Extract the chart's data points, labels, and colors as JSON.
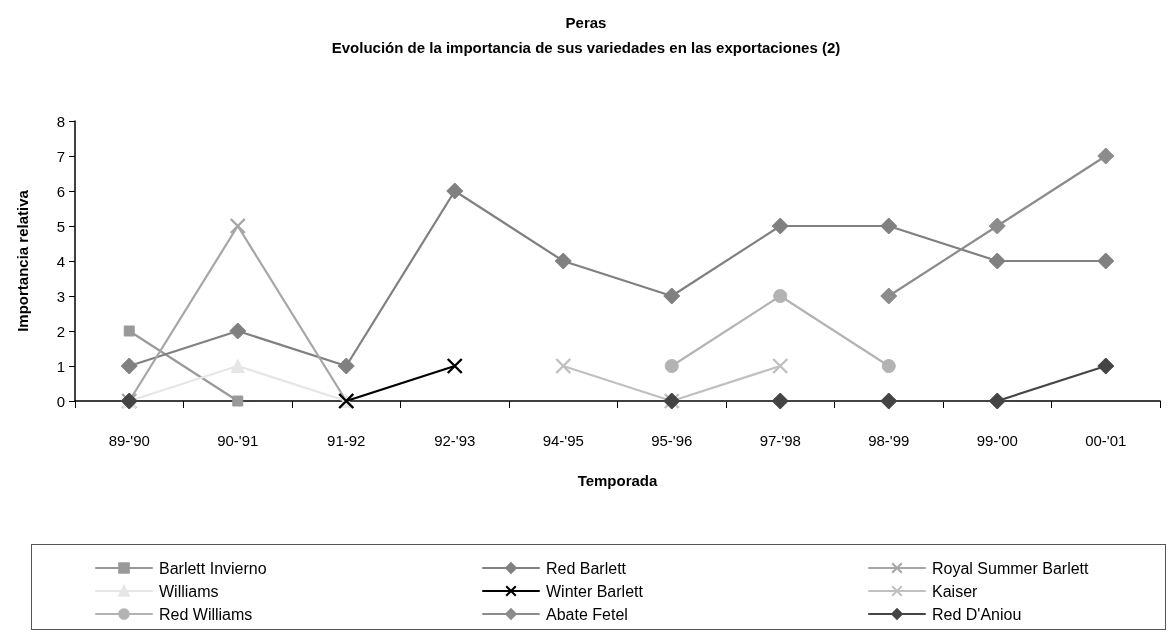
{
  "chart_data": {
    "type": "line",
    "title": "Peras",
    "subtitle": "Evolución de la importancia de sus variedades en las exportaciones (2)",
    "xlabel": "Temporada",
    "ylabel": "Importancia relativa",
    "categories": [
      "89-'90",
      "90-'91",
      "91-92",
      "92-'93",
      "94-'95",
      "95-'96",
      "97-'98",
      "98-'99",
      "99-'00",
      "00-'01"
    ],
    "series": [
      {
        "name": "Barlett Invierno",
        "color": "#999999",
        "marker": "square",
        "values": [
          2,
          0,
          null,
          null,
          null,
          null,
          null,
          null,
          null,
          null
        ]
      },
      {
        "name": "Red Barlett",
        "color": "#808080",
        "marker": "diamond",
        "values": [
          1,
          2,
          1,
          6,
          4,
          3,
          5,
          5,
          4,
          4
        ]
      },
      {
        "name": "Royal Summer Barlett",
        "color": "#a6a6a6",
        "marker": "cross",
        "values": [
          0,
          5,
          0,
          null,
          null,
          null,
          null,
          null,
          null,
          null
        ]
      },
      {
        "name": "Williams",
        "color": "#e6e6e6",
        "marker": "triangle",
        "values": [
          0,
          1,
          0,
          null,
          null,
          null,
          null,
          null,
          null,
          null
        ]
      },
      {
        "name": "Winter Barlett",
        "color": "#000000",
        "marker": "cross",
        "values": [
          null,
          null,
          0,
          1,
          null,
          null,
          null,
          null,
          null,
          null
        ]
      },
      {
        "name": "Kaiser",
        "color": "#c0c0c0",
        "marker": "cross",
        "values": [
          null,
          null,
          null,
          null,
          1,
          0,
          1,
          null,
          null,
          null
        ]
      },
      {
        "name": "Red Williams",
        "color": "#b3b3b3",
        "marker": "circle",
        "values": [
          null,
          null,
          null,
          null,
          null,
          1,
          3,
          1,
          null,
          null
        ]
      },
      {
        "name": "Abate Fetel",
        "color": "#8c8c8c",
        "marker": "diamond",
        "values": [
          null,
          null,
          null,
          null,
          null,
          null,
          null,
          3,
          5,
          7
        ]
      },
      {
        "name": "Red D'Aniou",
        "color": "#444444",
        "marker": "diamond",
        "values": [
          0,
          null,
          null,
          null,
          null,
          0,
          0,
          0,
          0,
          1
        ]
      }
    ],
    "ylim": [
      0,
      8
    ],
    "yticks": [
      0,
      1,
      2,
      3,
      4,
      5,
      6,
      7,
      8
    ],
    "grid": false,
    "legend": "bottom",
    "line_style": "solid"
  }
}
